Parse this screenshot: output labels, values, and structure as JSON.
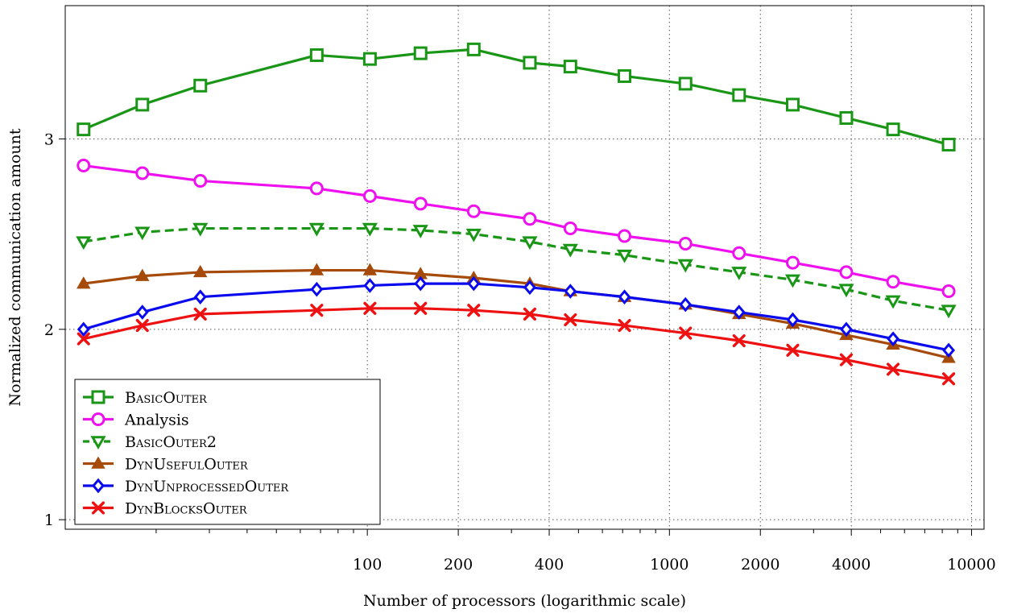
{
  "chart_data": {
    "type": "line",
    "title": "",
    "xlabel": "Number of processors (logarithmic scale)",
    "ylabel": "Normalized communication amount",
    "x_scale": "log",
    "xlim": [
      10,
      11000
    ],
    "ylim": [
      0.95,
      3.7
    ],
    "x_ticks": [
      100,
      200,
      400,
      1000,
      2000,
      4000,
      10000
    ],
    "x_tick_labels": [
      "100",
      "200",
      "400",
      "1000",
      "2000",
      "4000",
      "10000"
    ],
    "y_ticks": [
      1,
      2,
      3
    ],
    "y_tick_labels": [
      "1",
      "2",
      "3"
    ],
    "grid": true,
    "legend_position": "bottom-left",
    "x": [
      11.5,
      18,
      28,
      68,
      102,
      150,
      225,
      345,
      470,
      710,
      1130,
      1700,
      2560,
      3850,
      5500,
      8400
    ],
    "series": [
      {
        "name": "BasicOuter",
        "color": "#1a9616",
        "marker": "square",
        "dash": "solid",
        "values": [
          3.05,
          3.18,
          3.28,
          3.44,
          3.42,
          3.45,
          3.47,
          3.4,
          3.38,
          3.33,
          3.29,
          3.23,
          3.18,
          3.11,
          3.05,
          2.97
        ]
      },
      {
        "name": "Analysis",
        "color": "#ee10ee",
        "marker": "circle",
        "dash": "solid",
        "values": [
          2.86,
          2.82,
          2.78,
          2.74,
          2.7,
          2.66,
          2.62,
          2.58,
          2.53,
          2.49,
          2.45,
          2.4,
          2.35,
          2.3,
          2.25,
          2.2
        ]
      },
      {
        "name": "BasicOuter2",
        "color": "#1a9616",
        "marker": "triangle-down",
        "dash": "dashed",
        "values": [
          2.46,
          2.51,
          2.53,
          2.53,
          2.53,
          2.52,
          2.5,
          2.46,
          2.42,
          2.39,
          2.34,
          2.3,
          2.26,
          2.21,
          2.15,
          2.1
        ]
      },
      {
        "name": "DynUsefulOuter",
        "color": "#a64a0a",
        "marker": "triangle-up",
        "dash": "solid",
        "values": [
          2.24,
          2.28,
          2.3,
          2.31,
          2.31,
          2.29,
          2.27,
          2.24,
          2.2,
          2.17,
          2.13,
          2.08,
          2.03,
          1.97,
          1.92,
          1.85
        ]
      },
      {
        "name": "DynUnprocessedOuter",
        "color": "#0a0aee",
        "marker": "diamond",
        "dash": "solid",
        "values": [
          2.0,
          2.09,
          2.17,
          2.21,
          2.23,
          2.24,
          2.24,
          2.22,
          2.2,
          2.17,
          2.13,
          2.09,
          2.05,
          2.0,
          1.95,
          1.89
        ]
      },
      {
        "name": "DynBlocksOuter",
        "color": "#ee1111",
        "marker": "cross",
        "dash": "solid",
        "values": [
          1.95,
          2.02,
          2.08,
          2.1,
          2.11,
          2.11,
          2.1,
          2.08,
          2.05,
          2.02,
          1.98,
          1.94,
          1.89,
          1.84,
          1.79,
          1.74
        ]
      }
    ]
  }
}
